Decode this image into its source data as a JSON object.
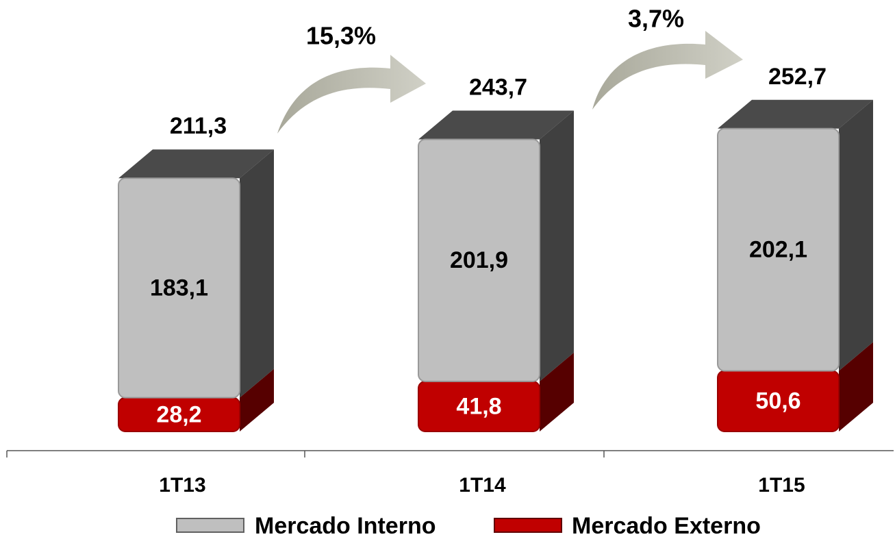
{
  "chart_data": {
    "type": "bar",
    "stacked": true,
    "categories": [
      "1T13",
      "1T14",
      "1T15"
    ],
    "series": [
      {
        "name": "Mercado Externo",
        "color": "#c00000",
        "values": [
          28.2,
          41.8,
          50.6
        ],
        "value_labels": [
          "28,2",
          "41,8",
          "50,6"
        ]
      },
      {
        "name": "Mercado Interno",
        "color": "#bfbfbf",
        "values": [
          183.1,
          201.9,
          202.1
        ],
        "value_labels": [
          "183,1",
          "201,9",
          "202,1"
        ]
      }
    ],
    "totals": {
      "values": [
        211.3,
        243.7,
        252.7
      ],
      "value_labels": [
        "211,3",
        "243,7",
        "252,7"
      ]
    },
    "annotations": [
      "15,3%",
      "3,7%"
    ]
  }
}
